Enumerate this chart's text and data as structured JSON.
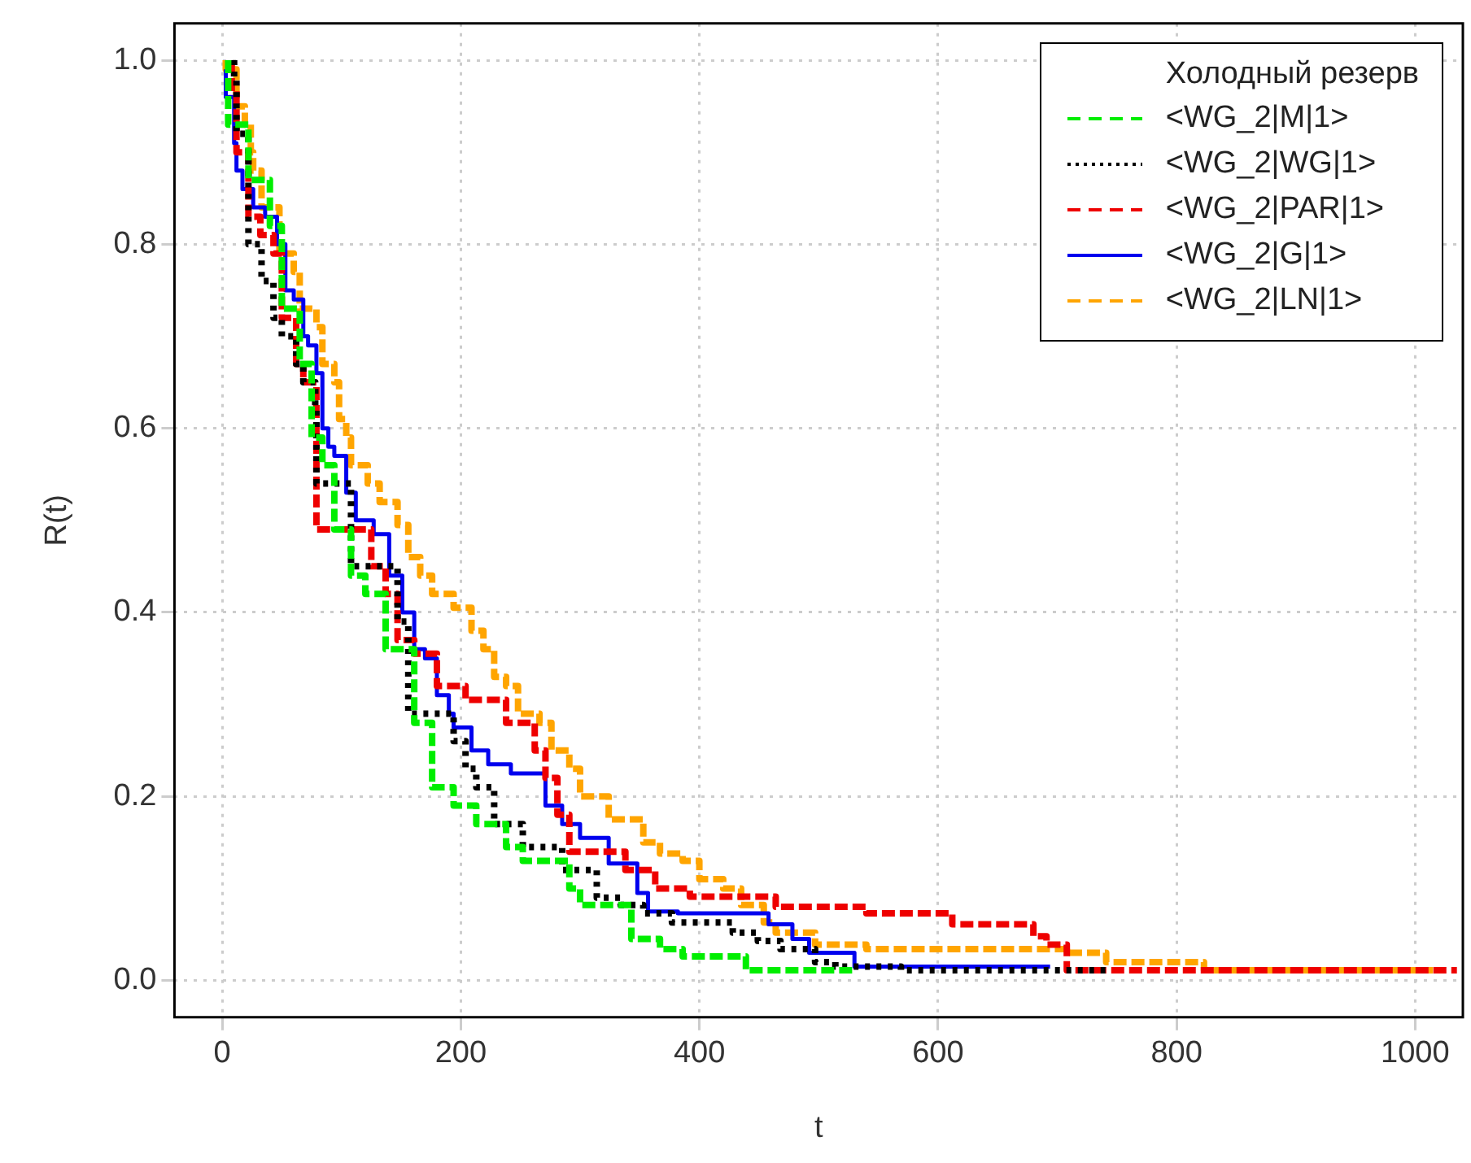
{
  "chart_data": {
    "type": "step",
    "xlabel": "t",
    "ylabel": "R(t)",
    "legend_title": "Холодный резерв",
    "legend": "top right",
    "grid": true,
    "xlim": [
      -40,
      1040
    ],
    "xticks": [
      0,
      200,
      400,
      600,
      800,
      1000
    ],
    "ylim": [
      -0.04,
      1.04
    ],
    "yticks": [
      {
        "value": 0,
        "label": "0.0"
      },
      0.2,
      0.4,
      0.6,
      0.8,
      {
        "value": 1,
        "label": "1.0"
      }
    ],
    "series": [
      {
        "name": "<WG_2|M|1>",
        "color": "#00ee00",
        "line_style": "dashed",
        "x": [
          5,
          22,
          40,
          50,
          65,
          75,
          84,
          94,
          108,
          120,
          137,
          161,
          176,
          194,
          213,
          238,
          252,
          291,
          300,
          343,
          367,
          386,
          439,
          454,
          530
        ],
        "values": [
          1,
          0.93,
          0.87,
          0.82,
          0.73,
          0.67,
          0.59,
          0.56,
          0.49,
          0.44,
          0.42,
          0.36,
          0.28,
          0.21,
          0.19,
          0.17,
          0.145,
          0.13,
          0.1,
          0.082,
          0.045,
          0.034,
          0.026,
          0.011,
          0.011
        ]
      },
      {
        "name": "<WG_2|WG|1>",
        "color": "#000000",
        "line_style": "dotted",
        "x": [
          10,
          12,
          22,
          33,
          43,
          50,
          62,
          68,
          78,
          79,
          108,
          147,
          156,
          194,
          204,
          213,
          228,
          252,
          285,
          314,
          334,
          353,
          377,
          428,
          449,
          468,
          497,
          514,
          569,
          742
        ],
        "values": [
          1,
          0.98,
          0.92,
          0.8,
          0.76,
          0.72,
          0.7,
          0.67,
          0.65,
          0.62,
          0.54,
          0.45,
          0.39,
          0.29,
          0.26,
          0.23,
          0.21,
          0.17,
          0.145,
          0.12,
          0.09,
          0.082,
          0.073,
          0.063,
          0.052,
          0.043,
          0.034,
          0.02,
          0.015,
          0.011
        ]
      },
      {
        "name": "<WG_2|PAR|1>",
        "color": "#ee0000",
        "line_style": "dashed",
        "x": [
          8,
          12,
          22,
          32,
          43,
          50,
          62,
          68,
          79,
          125,
          137,
          147,
          161,
          180,
          204,
          238,
          262,
          271,
          281,
          291,
          338,
          363,
          392,
          464,
          540,
          612,
          680,
          691,
          708,
          737,
          1035
        ],
        "values": [
          1,
          0.97,
          0.9,
          0.83,
          0.81,
          0.79,
          0.72,
          0.67,
          0.65,
          0.49,
          0.45,
          0.42,
          0.37,
          0.355,
          0.32,
          0.305,
          0.28,
          0.25,
          0.22,
          0.18,
          0.14,
          0.12,
          0.1,
          0.091,
          0.08,
          0.073,
          0.061,
          0.048,
          0.039,
          0.011,
          0.011
        ]
      },
      {
        "name": "<WG_2|G|1>",
        "color": "#0000ee",
        "line_style": "solid",
        "x": [
          3,
          10,
          12,
          17,
          26,
          36,
          46,
          53,
          60,
          68,
          72,
          79,
          84,
          89,
          94,
          104,
          112,
          127,
          140,
          151,
          161,
          170,
          180,
          190,
          194,
          209,
          223,
          242,
          271,
          285,
          300,
          324,
          348,
          357,
          382,
          458,
          478,
          492,
          530,
          550,
          694
        ],
        "values": [
          0.99,
          0.96,
          0.91,
          0.88,
          0.86,
          0.84,
          0.83,
          0.8,
          0.75,
          0.74,
          0.7,
          0.69,
          0.66,
          0.6,
          0.58,
          0.57,
          0.53,
          0.5,
          0.485,
          0.44,
          0.4,
          0.36,
          0.35,
          0.31,
          0.29,
          0.275,
          0.25,
          0.235,
          0.225,
          0.19,
          0.17,
          0.155,
          0.127,
          0.095,
          0.075,
          0.073,
          0.061,
          0.045,
          0.03,
          0.015,
          0.015
        ]
      },
      {
        "name": "<WG_2|LN|1>",
        "color": "#ffa500",
        "line_style": "dashed",
        "x": [
          3,
          12,
          19,
          24,
          26,
          33,
          48,
          60,
          65,
          79,
          84,
          94,
          98,
          104,
          108,
          122,
          132,
          147,
          156,
          166,
          176,
          194,
          209,
          219,
          228,
          238,
          248,
          266,
          276,
          291,
          300,
          324,
          353,
          367,
          386,
          400,
          420,
          435,
          454,
          464,
          497,
          540,
          708,
          741,
          823,
          939,
          1015
        ],
        "values": [
          1,
          0.99,
          0.95,
          0.93,
          0.9,
          0.88,
          0.84,
          0.79,
          0.77,
          0.73,
          0.71,
          0.67,
          0.65,
          0.61,
          0.59,
          0.56,
          0.54,
          0.52,
          0.495,
          0.46,
          0.44,
          0.42,
          0.405,
          0.38,
          0.36,
          0.33,
          0.32,
          0.29,
          0.28,
          0.25,
          0.23,
          0.2,
          0.175,
          0.15,
          0.138,
          0.13,
          0.11,
          0.1,
          0.082,
          0.063,
          0.052,
          0.039,
          0.034,
          0.03,
          0.02,
          0.011,
          0.011
        ]
      }
    ]
  }
}
